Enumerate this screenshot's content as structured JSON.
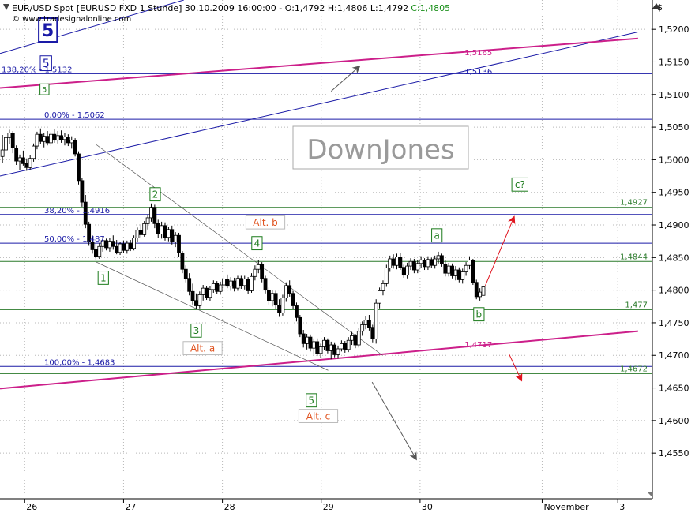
{
  "header": {
    "info": "EUR/USD Spot [EURUSD FXD  1 Stunde] 30.10.2009 16:00:00 - O:1,4792 H:1,4806 L:1,4792",
    "close": "C:1,4805",
    "source": "© www.tradesignalonline.com",
    "currency_symbol": "$"
  },
  "watermark": "DownJones",
  "colors": {
    "grid": "#b8b8b8",
    "candle": "#000000",
    "blue_line": "#1a1aa6",
    "green_line": "#2a7a2a",
    "magenta_line": "#cc1f8a",
    "arrow_red": "#e0141e",
    "arrow_gray": "#555555",
    "wave_green": "#1a7a1a",
    "alt_orange": "#e0521e"
  },
  "chart_data": {
    "type": "candlestick",
    "ylim": [
      1.448,
      1.5245
    ],
    "xlim": [
      0,
      13.2
    ],
    "x_ticks": [
      {
        "x": 0.5,
        "label": "26"
      },
      {
        "x": 2.5,
        "label": "27"
      },
      {
        "x": 4.5,
        "label": "28"
      },
      {
        "x": 6.5,
        "label": "29"
      },
      {
        "x": 8.5,
        "label": "30"
      },
      {
        "x": 10.97,
        "label": "November"
      },
      {
        "x": 12.5,
        "label": "3"
      }
    ],
    "y_ticks": [
      {
        "v": 1.52,
        "label": "1,5200"
      },
      {
        "v": 1.515,
        "label": "1,5150"
      },
      {
        "v": 1.51,
        "label": "1,5100"
      },
      {
        "v": 1.505,
        "label": "1,5050"
      },
      {
        "v": 1.5,
        "label": "1,5000"
      },
      {
        "v": 1.495,
        "label": "1,4950"
      },
      {
        "v": 1.49,
        "label": "1,4900"
      },
      {
        "v": 1.485,
        "label": "1,4850"
      },
      {
        "v": 1.48,
        "label": "1,4800"
      },
      {
        "v": 1.475,
        "label": "1,4750"
      },
      {
        "v": 1.47,
        "label": "1,4700"
      },
      {
        "v": 1.465,
        "label": "1,4650"
      },
      {
        "v": 1.46,
        "label": "1,4600"
      },
      {
        "v": 1.455,
        "label": "1,4550"
      }
    ],
    "horizontal_levels": [
      {
        "v": 1.5132,
        "color": "blue",
        "label": "138,20% - 1,5132"
      },
      {
        "v": 1.5062,
        "color": "blue",
        "label": "0,00% - 1,5062"
      },
      {
        "v": 1.4916,
        "color": "blue",
        "label": "38,20% - 1,4916"
      },
      {
        "v": 1.4872,
        "color": "blue",
        "label": "50,00% - 1,487"
      },
      {
        "v": 1.4683,
        "color": "blue",
        "label": "100,00% - 1,4683"
      },
      {
        "v": 1.4927,
        "color": "green",
        "label": "1,4927"
      },
      {
        "v": 1.4844,
        "color": "green",
        "label": "1,4844"
      },
      {
        "v": 1.477,
        "color": "green",
        "label": "1,477"
      },
      {
        "v": 1.4672,
        "color": "green",
        "label": "1,4672"
      }
    ],
    "line_labels": [
      {
        "x": 9.4,
        "v": 1.5165,
        "color": "magenta",
        "label": "1,5165"
      },
      {
        "x": 9.4,
        "v": 1.5136,
        "color": "blue",
        "label": "1,5136"
      },
      {
        "x": 9.4,
        "v": 1.4717,
        "color": "magenta",
        "label": "1,4717"
      }
    ],
    "trendlines": [
      {
        "x1": 0,
        "v1": 1.5163,
        "x2": 3.72,
        "v2": 1.5245,
        "color": "blue"
      },
      {
        "x1": 0,
        "v1": 1.4975,
        "x2": 12.91,
        "v2": 1.5196,
        "color": "blue"
      },
      {
        "x1": 0,
        "v1": 1.511,
        "x2": 12.91,
        "v2": 1.5186,
        "color": "magenta"
      },
      {
        "x1": 0,
        "v1": 1.4649,
        "x2": 12.91,
        "v2": 1.4737,
        "color": "magenta"
      },
      {
        "x1": 1.95,
        "v1": 1.5023,
        "x2": 7.74,
        "v2": 1.47,
        "color": "gray"
      },
      {
        "x1": 1.95,
        "v1": 1.4843,
        "x2": 6.64,
        "v2": 1.4677,
        "color": "gray"
      }
    ],
    "wave_labels": [
      {
        "label": "5",
        "x": 0.97,
        "v": 1.5199,
        "style": "big_blue"
      },
      {
        "label": "5",
        "x": 0.93,
        "v": 1.5148,
        "style": "blue"
      },
      {
        "label": "5",
        "x": 0.9,
        "v": 1.5108,
        "style": "small_green"
      },
      {
        "label": "2",
        "x": 3.14,
        "v": 1.4947,
        "style": "green"
      },
      {
        "label": "1",
        "x": 2.09,
        "v": 1.4819,
        "style": "green"
      },
      {
        "label": "3",
        "x": 3.97,
        "v": 1.4738,
        "style": "green"
      },
      {
        "label": "4",
        "x": 5.2,
        "v": 1.4872,
        "style": "green"
      },
      {
        "label": "5",
        "x": 6.3,
        "v": 1.4631,
        "style": "green"
      },
      {
        "label": "a",
        "x": 8.84,
        "v": 1.4884,
        "style": "green"
      },
      {
        "label": "b",
        "x": 9.69,
        "v": 1.4763,
        "style": "green"
      },
      {
        "label": "c?",
        "x": 10.52,
        "v": 1.4962,
        "style": "green"
      },
      {
        "label": "Alt. b",
        "x": 5.37,
        "v": 1.4904,
        "style": "orange"
      },
      {
        "label": "Alt. a",
        "x": 4.1,
        "v": 1.4711,
        "style": "orange"
      },
      {
        "label": "Alt. c",
        "x": 6.44,
        "v": 1.4607,
        "style": "orange"
      }
    ],
    "arrows": [
      {
        "x1": 6.7,
        "v1": 1.5105,
        "x2": 7.27,
        "v2": 1.5143,
        "color": "gray"
      },
      {
        "x1": 7.53,
        "v1": 1.4659,
        "x2": 8.42,
        "v2": 1.4541,
        "color": "gray"
      },
      {
        "x1": 9.82,
        "v1": 1.4807,
        "x2": 10.4,
        "v2": 1.4912,
        "color": "red"
      },
      {
        "x1": 10.3,
        "v1": 1.4702,
        "x2": 10.55,
        "v2": 1.4662,
        "color": "red"
      }
    ],
    "candles": [
      [
        0.05,
        1.5005,
        1.5038,
        1.4995,
        1.5015
      ],
      [
        0.12,
        1.5015,
        1.5042,
        1.5008,
        1.5034
      ],
      [
        0.19,
        1.5034,
        1.5046,
        1.5024,
        1.5041
      ],
      [
        0.26,
        1.5041,
        1.5044,
        1.501,
        1.5018
      ],
      [
        0.33,
        1.5018,
        1.5022,
        1.4992,
        1.4998
      ],
      [
        0.4,
        1.4998,
        1.5008,
        1.4984,
        1.5003
      ],
      [
        0.47,
        1.5003,
        1.5014,
        1.4991,
        1.4994
      ],
      [
        0.54,
        1.4994,
        1.5002,
        1.4983,
        1.4988
      ],
      [
        0.61,
        1.4988,
        1.5007,
        1.4985,
        1.5002
      ],
      [
        0.68,
        1.5002,
        1.5025,
        1.4997,
        1.5021
      ],
      [
        0.75,
        1.5021,
        1.5043,
        1.5016,
        1.5039
      ],
      [
        0.82,
        1.5039,
        1.5048,
        1.5024,
        1.5028
      ],
      [
        0.89,
        1.5028,
        1.5041,
        1.5019,
        1.5036
      ],
      [
        0.96,
        1.5036,
        1.5044,
        1.5022,
        1.5026
      ],
      [
        1.03,
        1.5026,
        1.5043,
        1.5021,
        1.5039
      ],
      [
        1.1,
        1.5039,
        1.5047,
        1.5026,
        1.503
      ],
      [
        1.17,
        1.503,
        1.5044,
        1.5025,
        1.5037
      ],
      [
        1.24,
        1.5037,
        1.5045,
        1.5026,
        1.5031
      ],
      [
        1.31,
        1.5031,
        1.5041,
        1.5022,
        1.5035
      ],
      [
        1.38,
        1.5035,
        1.5039,
        1.5021,
        1.5026
      ],
      [
        1.45,
        1.5026,
        1.5036,
        1.5017,
        1.503
      ],
      [
        1.52,
        1.503,
        1.5033,
        1.5005,
        1.5009
      ],
      [
        1.59,
        1.5009,
        1.5013,
        1.4962,
        1.4968
      ],
      [
        1.66,
        1.4968,
        1.4972,
        1.4928,
        1.4935
      ],
      [
        1.73,
        1.4935,
        1.4946,
        1.4895,
        1.4901
      ],
      [
        1.8,
        1.4901,
        1.4905,
        1.4868,
        1.4874
      ],
      [
        1.87,
        1.4874,
        1.4884,
        1.4856,
        1.4862
      ],
      [
        1.94,
        1.4862,
        1.4872,
        1.4846,
        1.4852
      ],
      [
        2.01,
        1.4852,
        1.4872,
        1.4848,
        1.4867
      ],
      [
        2.08,
        1.4867,
        1.4882,
        1.4859,
        1.4876
      ],
      [
        2.15,
        1.4876,
        1.4879,
        1.4861,
        1.4865
      ],
      [
        2.22,
        1.4865,
        1.488,
        1.4859,
        1.4875
      ],
      [
        2.29,
        1.4875,
        1.4884,
        1.4862,
        1.4867
      ],
      [
        2.36,
        1.4867,
        1.4877,
        1.4855,
        1.4858
      ],
      [
        2.43,
        1.4858,
        1.4874,
        1.4854,
        1.4871
      ],
      [
        2.5,
        1.4871,
        1.4876,
        1.4857,
        1.4861
      ],
      [
        2.57,
        1.4861,
        1.4876,
        1.4856,
        1.4872
      ],
      [
        2.64,
        1.4872,
        1.4877,
        1.486,
        1.4864
      ],
      [
        2.71,
        1.4864,
        1.4884,
        1.4861,
        1.488
      ],
      [
        2.78,
        1.488,
        1.4896,
        1.4874,
        1.4892
      ],
      [
        2.85,
        1.4892,
        1.4901,
        1.4881,
        1.4885
      ],
      [
        2.92,
        1.4885,
        1.4906,
        1.4882,
        1.4902
      ],
      [
        2.99,
        1.4902,
        1.4916,
        1.4893,
        1.4911
      ],
      [
        3.06,
        1.4911,
        1.4933,
        1.4905,
        1.4927
      ],
      [
        3.13,
        1.4927,
        1.4931,
        1.4895,
        1.4902
      ],
      [
        3.2,
        1.4902,
        1.4908,
        1.488,
        1.4886
      ],
      [
        3.27,
        1.4886,
        1.4905,
        1.4879,
        1.4899
      ],
      [
        3.34,
        1.4899,
        1.4904,
        1.4876,
        1.4881
      ],
      [
        3.41,
        1.4881,
        1.4897,
        1.4875,
        1.4893
      ],
      [
        3.48,
        1.4893,
        1.4899,
        1.487,
        1.4874
      ],
      [
        3.55,
        1.4874,
        1.4889,
        1.4866,
        1.4884
      ],
      [
        3.62,
        1.4884,
        1.4888,
        1.4851,
        1.4857
      ],
      [
        3.69,
        1.4857,
        1.486,
        1.4826,
        1.4832
      ],
      [
        3.76,
        1.4832,
        1.4838,
        1.4812,
        1.4818
      ],
      [
        3.83,
        1.4818,
        1.4826,
        1.4792,
        1.4798
      ],
      [
        3.9,
        1.4798,
        1.481,
        1.4778,
        1.4784
      ],
      [
        3.97,
        1.4784,
        1.4795,
        1.4771,
        1.4776
      ],
      [
        4.04,
        1.4776,
        1.4798,
        1.4772,
        1.4793
      ],
      [
        4.11,
        1.4793,
        1.4808,
        1.4784,
        1.4803
      ],
      [
        4.18,
        1.4803,
        1.4806,
        1.4785,
        1.4789
      ],
      [
        4.25,
        1.4789,
        1.4806,
        1.4783,
        1.4801
      ],
      [
        4.32,
        1.4801,
        1.4815,
        1.4796,
        1.481
      ],
      [
        4.39,
        1.481,
        1.4814,
        1.4794,
        1.4798
      ],
      [
        4.46,
        1.4798,
        1.4813,
        1.4793,
        1.4808
      ],
      [
        4.53,
        1.4808,
        1.4822,
        1.4803,
        1.4817
      ],
      [
        4.6,
        1.4817,
        1.4824,
        1.4803,
        1.4806
      ],
      [
        4.67,
        1.4806,
        1.482,
        1.4799,
        1.4814
      ],
      [
        4.74,
        1.4814,
        1.4819,
        1.4798,
        1.4803
      ],
      [
        4.81,
        1.4803,
        1.4822,
        1.4799,
        1.4818
      ],
      [
        4.88,
        1.4818,
        1.4822,
        1.4802,
        1.4807
      ],
      [
        4.95,
        1.4807,
        1.4822,
        1.4801,
        1.4817
      ],
      [
        5.02,
        1.4817,
        1.482,
        1.4794,
        1.4799
      ],
      [
        5.09,
        1.4799,
        1.4826,
        1.4796,
        1.4821
      ],
      [
        5.16,
        1.4821,
        1.4838,
        1.4815,
        1.4832
      ],
      [
        5.23,
        1.4832,
        1.4846,
        1.4826,
        1.4839
      ],
      [
        5.3,
        1.4839,
        1.4843,
        1.4812,
        1.4818
      ],
      [
        5.37,
        1.4818,
        1.4822,
        1.4795,
        1.48
      ],
      [
        5.44,
        1.48,
        1.4804,
        1.4778,
        1.4784
      ],
      [
        5.51,
        1.4784,
        1.48,
        1.4775,
        1.4795
      ],
      [
        5.58,
        1.4795,
        1.4799,
        1.4771,
        1.4777
      ],
      [
        5.65,
        1.4777,
        1.4786,
        1.4759,
        1.4765
      ],
      [
        5.72,
        1.4765,
        1.4793,
        1.4761,
        1.4788
      ],
      [
        5.79,
        1.4788,
        1.4812,
        1.4782,
        1.4807
      ],
      [
        5.86,
        1.4807,
        1.4815,
        1.479,
        1.4795
      ],
      [
        5.93,
        1.4795,
        1.4799,
        1.4771,
        1.4776
      ],
      [
        6.0,
        1.4776,
        1.4781,
        1.4752,
        1.4758
      ],
      [
        6.07,
        1.4758,
        1.4762,
        1.4728,
        1.4733
      ],
      [
        6.14,
        1.4733,
        1.4739,
        1.4712,
        1.4718
      ],
      [
        6.21,
        1.4718,
        1.4733,
        1.4709,
        1.4728
      ],
      [
        6.28,
        1.4728,
        1.4732,
        1.4706,
        1.4711
      ],
      [
        6.35,
        1.4711,
        1.4726,
        1.4701,
        1.4721
      ],
      [
        6.42,
        1.4721,
        1.4726,
        1.4699,
        1.4703
      ],
      [
        6.49,
        1.4703,
        1.4718,
        1.4696,
        1.4713
      ],
      [
        6.56,
        1.4713,
        1.4728,
        1.4708,
        1.4723
      ],
      [
        6.63,
        1.4723,
        1.4726,
        1.4703,
        1.4707
      ],
      [
        6.7,
        1.4707,
        1.4721,
        1.4694,
        1.4716
      ],
      [
        6.77,
        1.4716,
        1.472,
        1.4697,
        1.4701
      ],
      [
        6.84,
        1.4701,
        1.4715,
        1.4695,
        1.471
      ],
      [
        6.91,
        1.471,
        1.4723,
        1.4706,
        1.4718
      ],
      [
        6.98,
        1.4718,
        1.4722,
        1.4704,
        1.4709
      ],
      [
        7.05,
        1.4709,
        1.4728,
        1.4705,
        1.4723
      ],
      [
        7.12,
        1.4723,
        1.4736,
        1.4716,
        1.473
      ],
      [
        7.19,
        1.473,
        1.4733,
        1.4711,
        1.4716
      ],
      [
        7.26,
        1.4716,
        1.4742,
        1.4712,
        1.4737
      ],
      [
        7.33,
        1.4737,
        1.4752,
        1.473,
        1.4747
      ],
      [
        7.4,
        1.4747,
        1.476,
        1.474,
        1.4754
      ],
      [
        7.47,
        1.4754,
        1.4762,
        1.4738,
        1.4743
      ],
      [
        7.54,
        1.4743,
        1.4747,
        1.472,
        1.4725
      ],
      [
        7.61,
        1.4725,
        1.4786,
        1.4718,
        1.478
      ],
      [
        7.68,
        1.478,
        1.4804,
        1.4772,
        1.4799
      ],
      [
        7.75,
        1.4799,
        1.4815,
        1.4792,
        1.481
      ],
      [
        7.82,
        1.481,
        1.4839,
        1.4805,
        1.4834
      ],
      [
        7.89,
        1.4834,
        1.4853,
        1.4828,
        1.4848
      ],
      [
        7.96,
        1.4848,
        1.4855,
        1.4833,
        1.4838
      ],
      [
        8.03,
        1.4838,
        1.4856,
        1.4832,
        1.4851
      ],
      [
        8.1,
        1.4851,
        1.4857,
        1.4831,
        1.4835
      ],
      [
        8.17,
        1.4835,
        1.4839,
        1.4819,
        1.4823
      ],
      [
        8.24,
        1.4823,
        1.4842,
        1.4818,
        1.4837
      ],
      [
        8.31,
        1.4837,
        1.4849,
        1.4831,
        1.4844
      ],
      [
        8.38,
        1.4844,
        1.4848,
        1.4826,
        1.4831
      ],
      [
        8.45,
        1.4831,
        1.4846,
        1.4826,
        1.4841
      ],
      [
        8.52,
        1.4841,
        1.4852,
        1.4834,
        1.4846
      ],
      [
        8.59,
        1.4846,
        1.4849,
        1.4831,
        1.4836
      ],
      [
        8.66,
        1.4836,
        1.4852,
        1.4831,
        1.4847
      ],
      [
        8.73,
        1.4847,
        1.485,
        1.4834,
        1.4838
      ],
      [
        8.8,
        1.4838,
        1.4853,
        1.4833,
        1.4848
      ],
      [
        8.87,
        1.4848,
        1.4859,
        1.4841,
        1.4853
      ],
      [
        8.94,
        1.4853,
        1.4856,
        1.4836,
        1.484
      ],
      [
        9.01,
        1.484,
        1.4846,
        1.4821,
        1.4826
      ],
      [
        9.08,
        1.4826,
        1.4842,
        1.4821,
        1.4837
      ],
      [
        9.15,
        1.4837,
        1.4841,
        1.4818,
        1.4822
      ],
      [
        9.22,
        1.4822,
        1.4837,
        1.4815,
        1.4831
      ],
      [
        9.29,
        1.4831,
        1.4835,
        1.4812,
        1.4816
      ],
      [
        9.36,
        1.4816,
        1.4833,
        1.481,
        1.4828
      ],
      [
        9.43,
        1.4828,
        1.4843,
        1.4822,
        1.4838
      ],
      [
        9.5,
        1.4838,
        1.4852,
        1.4832,
        1.4846
      ],
      [
        9.57,
        1.4846,
        1.4848,
        1.4808,
        1.4812
      ],
      [
        9.64,
        1.4812,
        1.4816,
        1.4786,
        1.479
      ],
      [
        9.71,
        1.479,
        1.4803,
        1.4784,
        1.4797
      ],
      [
        9.78,
        1.4792,
        1.4806,
        1.4792,
        1.4805
      ]
    ]
  }
}
